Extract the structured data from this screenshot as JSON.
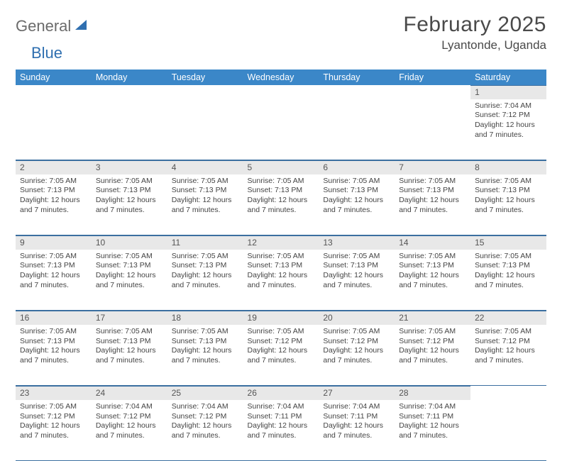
{
  "logo": {
    "text1": "General",
    "text2": "Blue"
  },
  "title": "February 2025",
  "location": "Lyantonde, Uganda",
  "colors": {
    "header_bg": "#3b87c8",
    "header_text": "#ffffff",
    "daynum_bg": "#e8e8e8",
    "border": "#3b6fa0",
    "logo_gray": "#6b6b6b",
    "logo_blue": "#2f6fb0"
  },
  "dayNames": [
    "Sunday",
    "Monday",
    "Tuesday",
    "Wednesday",
    "Thursday",
    "Friday",
    "Saturday"
  ],
  "weeks": [
    [
      null,
      null,
      null,
      null,
      null,
      null,
      {
        "n": "1",
        "sr": "7:04 AM",
        "ss": "7:12 PM",
        "dl": "12 hours and 7 minutes."
      }
    ],
    [
      {
        "n": "2",
        "sr": "7:05 AM",
        "ss": "7:13 PM",
        "dl": "12 hours and 7 minutes."
      },
      {
        "n": "3",
        "sr": "7:05 AM",
        "ss": "7:13 PM",
        "dl": "12 hours and 7 minutes."
      },
      {
        "n": "4",
        "sr": "7:05 AM",
        "ss": "7:13 PM",
        "dl": "12 hours and 7 minutes."
      },
      {
        "n": "5",
        "sr": "7:05 AM",
        "ss": "7:13 PM",
        "dl": "12 hours and 7 minutes."
      },
      {
        "n": "6",
        "sr": "7:05 AM",
        "ss": "7:13 PM",
        "dl": "12 hours and 7 minutes."
      },
      {
        "n": "7",
        "sr": "7:05 AM",
        "ss": "7:13 PM",
        "dl": "12 hours and 7 minutes."
      },
      {
        "n": "8",
        "sr": "7:05 AM",
        "ss": "7:13 PM",
        "dl": "12 hours and 7 minutes."
      }
    ],
    [
      {
        "n": "9",
        "sr": "7:05 AM",
        "ss": "7:13 PM",
        "dl": "12 hours and 7 minutes."
      },
      {
        "n": "10",
        "sr": "7:05 AM",
        "ss": "7:13 PM",
        "dl": "12 hours and 7 minutes."
      },
      {
        "n": "11",
        "sr": "7:05 AM",
        "ss": "7:13 PM",
        "dl": "12 hours and 7 minutes."
      },
      {
        "n": "12",
        "sr": "7:05 AM",
        "ss": "7:13 PM",
        "dl": "12 hours and 7 minutes."
      },
      {
        "n": "13",
        "sr": "7:05 AM",
        "ss": "7:13 PM",
        "dl": "12 hours and 7 minutes."
      },
      {
        "n": "14",
        "sr": "7:05 AM",
        "ss": "7:13 PM",
        "dl": "12 hours and 7 minutes."
      },
      {
        "n": "15",
        "sr": "7:05 AM",
        "ss": "7:13 PM",
        "dl": "12 hours and 7 minutes."
      }
    ],
    [
      {
        "n": "16",
        "sr": "7:05 AM",
        "ss": "7:13 PM",
        "dl": "12 hours and 7 minutes."
      },
      {
        "n": "17",
        "sr": "7:05 AM",
        "ss": "7:13 PM",
        "dl": "12 hours and 7 minutes."
      },
      {
        "n": "18",
        "sr": "7:05 AM",
        "ss": "7:13 PM",
        "dl": "12 hours and 7 minutes."
      },
      {
        "n": "19",
        "sr": "7:05 AM",
        "ss": "7:12 PM",
        "dl": "12 hours and 7 minutes."
      },
      {
        "n": "20",
        "sr": "7:05 AM",
        "ss": "7:12 PM",
        "dl": "12 hours and 7 minutes."
      },
      {
        "n": "21",
        "sr": "7:05 AM",
        "ss": "7:12 PM",
        "dl": "12 hours and 7 minutes."
      },
      {
        "n": "22",
        "sr": "7:05 AM",
        "ss": "7:12 PM",
        "dl": "12 hours and 7 minutes."
      }
    ],
    [
      {
        "n": "23",
        "sr": "7:05 AM",
        "ss": "7:12 PM",
        "dl": "12 hours and 7 minutes."
      },
      {
        "n": "24",
        "sr": "7:04 AM",
        "ss": "7:12 PM",
        "dl": "12 hours and 7 minutes."
      },
      {
        "n": "25",
        "sr": "7:04 AM",
        "ss": "7:12 PM",
        "dl": "12 hours and 7 minutes."
      },
      {
        "n": "26",
        "sr": "7:04 AM",
        "ss": "7:11 PM",
        "dl": "12 hours and 7 minutes."
      },
      {
        "n": "27",
        "sr": "7:04 AM",
        "ss": "7:11 PM",
        "dl": "12 hours and 7 minutes."
      },
      {
        "n": "28",
        "sr": "7:04 AM",
        "ss": "7:11 PM",
        "dl": "12 hours and 7 minutes."
      },
      null
    ]
  ],
  "labels": {
    "sunrise": "Sunrise: ",
    "sunset": "Sunset: ",
    "daylight": "Daylight: "
  }
}
